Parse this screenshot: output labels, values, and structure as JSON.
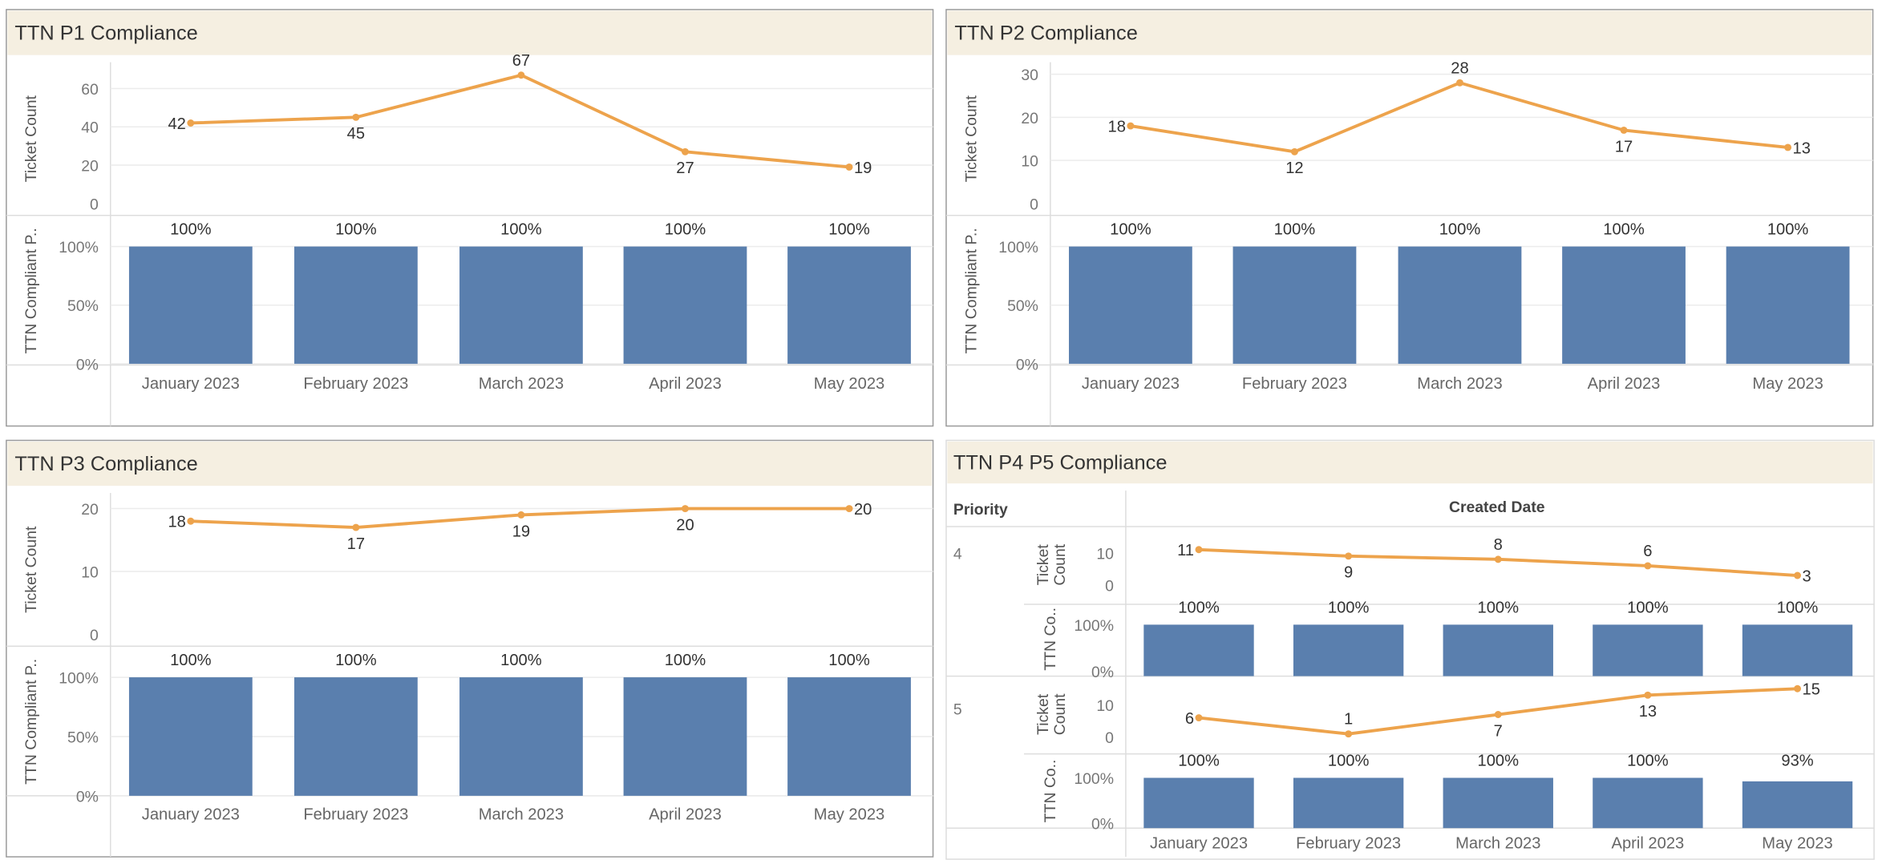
{
  "colors": {
    "header_bg": "#f5efe1",
    "line": "#eda34c",
    "bar": "#5a7fae",
    "border": "#9a9a9a",
    "grid": "#ececec"
  },
  "categories": [
    "January 2023",
    "February 2023",
    "March 2023",
    "April 2023",
    "May 2023"
  ],
  "panels": [
    {
      "title": "TTN P1 Compliance",
      "line_axis_label": "Ticket Count",
      "bar_axis_label": "TTN Compliant P..",
      "line_ticks": [
        "0",
        "20",
        "40",
        "60"
      ],
      "bar_ticks": [
        "0%",
        "50%",
        "100%"
      ],
      "ticket_count": [
        42,
        45,
        67,
        27,
        19
      ],
      "compliance_pct": [
        100,
        100,
        100,
        100,
        100
      ],
      "compliance_labels": [
        "100%",
        "100%",
        "100%",
        "100%",
        "100%"
      ]
    },
    {
      "title": "TTN P2 Compliance",
      "line_axis_label": "Ticket Count",
      "bar_axis_label": "TTN Compliant P..",
      "line_ticks": [
        "0",
        "10",
        "20",
        "30"
      ],
      "bar_ticks": [
        "0%",
        "50%",
        "100%"
      ],
      "ticket_count": [
        18,
        12,
        28,
        17,
        13
      ],
      "compliance_pct": [
        100,
        100,
        100,
        100,
        100
      ],
      "compliance_labels": [
        "100%",
        "100%",
        "100%",
        "100%",
        "100%"
      ]
    },
    {
      "title": "TTN P3 Compliance",
      "line_axis_label": "Ticket Count",
      "bar_axis_label": "TTN Compliant P..",
      "line_ticks": [
        "0",
        "10",
        "20"
      ],
      "bar_ticks": [
        "0%",
        "50%",
        "100%"
      ],
      "ticket_count": [
        18,
        17,
        19,
        20,
        20
      ],
      "compliance_pct": [
        100,
        100,
        100,
        100,
        100
      ],
      "compliance_labels": [
        "100%",
        "100%",
        "100%",
        "100%",
        "100%"
      ]
    }
  ],
  "p45": {
    "title": "TTN P4 P5 Compliance",
    "row_header": "Priority",
    "column_header": "Created Date",
    "rows": [
      {
        "priority": "4",
        "line_axis_label": "Ticket Count",
        "bar_axis_label": "TTN Co..",
        "line_ticks": [
          "0",
          "10"
        ],
        "bar_ticks": [
          "0%",
          "100%"
        ],
        "ticket_count": [
          11,
          9,
          8,
          6,
          3
        ],
        "compliance_pct": [
          100,
          100,
          100,
          100,
          100
        ],
        "compliance_labels": [
          "100%",
          "100%",
          "100%",
          "100%",
          "100%"
        ]
      },
      {
        "priority": "5",
        "line_axis_label": "Ticket Count",
        "bar_axis_label": "TTN Co..",
        "line_ticks": [
          "0",
          "10"
        ],
        "bar_ticks": [
          "0%",
          "100%"
        ],
        "ticket_count": [
          6,
          1,
          7,
          13,
          15
        ],
        "compliance_pct": [
          100,
          100,
          100,
          100,
          93
        ],
        "compliance_labels": [
          "100%",
          "100%",
          "100%",
          "100%",
          "93%"
        ]
      }
    ]
  }
}
